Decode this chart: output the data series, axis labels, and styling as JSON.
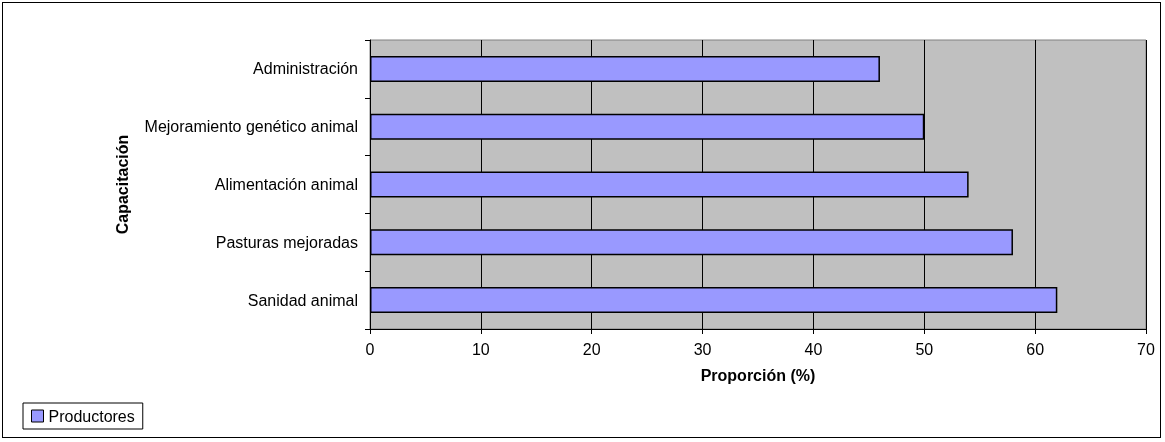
{
  "chart_data": {
    "type": "bar",
    "orientation": "horizontal",
    "ylabel": "Capacitación",
    "xlabel": "Proporción (%)",
    "categories": [
      "Administración",
      "Mejoramiento genético animal",
      "Alimentación animal",
      "Pasturas mejoradas",
      "Sanidad animal"
    ],
    "series": [
      {
        "name": "Productores",
        "color": "#9999ff",
        "values": [
          46,
          50,
          54,
          58,
          62
        ]
      }
    ],
    "xlim": [
      0,
      70
    ],
    "xticks": [
      0,
      10,
      20,
      30,
      40,
      50,
      60,
      70
    ],
    "grid": "x",
    "legend": "bottom left"
  }
}
